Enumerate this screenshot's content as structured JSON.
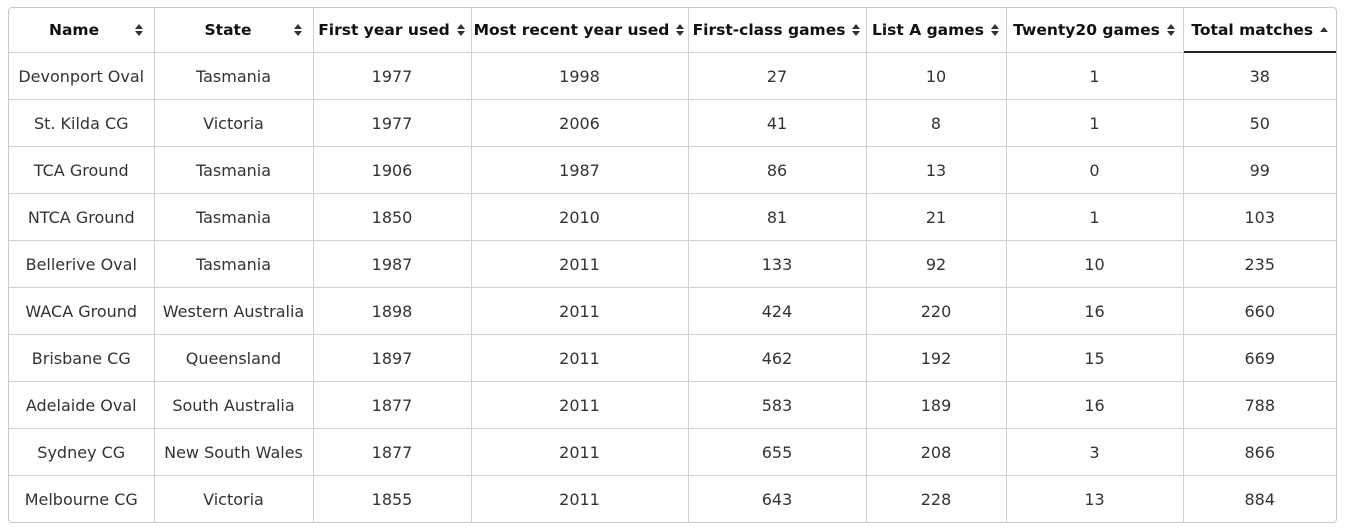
{
  "table": {
    "columns": [
      {
        "label": "Name",
        "sort": "both"
      },
      {
        "label": "State",
        "sort": "both"
      },
      {
        "label": "First year used",
        "sort": "both"
      },
      {
        "label": "Most recent year used",
        "sort": "both"
      },
      {
        "label": "First-class games",
        "sort": "both"
      },
      {
        "label": "List A games",
        "sort": "both"
      },
      {
        "label": "Twenty20 games",
        "sort": "both"
      },
      {
        "label": "Total matches",
        "sort": "ascending"
      }
    ],
    "rows": [
      [
        "Devonport Oval",
        "Tasmania",
        "1977",
        "1998",
        "27",
        "10",
        "1",
        "38"
      ],
      [
        "St. Kilda CG",
        "Victoria",
        "1977",
        "2006",
        "41",
        "8",
        "1",
        "50"
      ],
      [
        "TCA Ground",
        "Tasmania",
        "1906",
        "1987",
        "86",
        "13",
        "0",
        "99"
      ],
      [
        "NTCA Ground",
        "Tasmania",
        "1850",
        "2010",
        "81",
        "21",
        "1",
        "103"
      ],
      [
        "Bellerive Oval",
        "Tasmania",
        "1987",
        "2011",
        "133",
        "92",
        "10",
        "235"
      ],
      [
        "WACA Ground",
        "Western Australia",
        "1898",
        "2011",
        "424",
        "220",
        "16",
        "660"
      ],
      [
        "Brisbane CG",
        "Queensland",
        "1897",
        "2011",
        "462",
        "192",
        "15",
        "669"
      ],
      [
        "Adelaide Oval",
        "South Australia",
        "1877",
        "2011",
        "583",
        "189",
        "16",
        "788"
      ],
      [
        "Sydney CG",
        "New South Wales",
        "1877",
        "2011",
        "655",
        "208",
        "3",
        "866"
      ],
      [
        "Melbourne CG",
        "Victoria",
        "1855",
        "2011",
        "643",
        "228",
        "13",
        "884"
      ]
    ]
  },
  "icons": {
    "sortable": "sort-both-icon",
    "sorted_ascending": "sort-ascending-icon"
  },
  "colors": {
    "border": "#d0d0d0",
    "header_text": "#111111",
    "cell_text": "#333333",
    "active_sort_underline": "#222222"
  }
}
